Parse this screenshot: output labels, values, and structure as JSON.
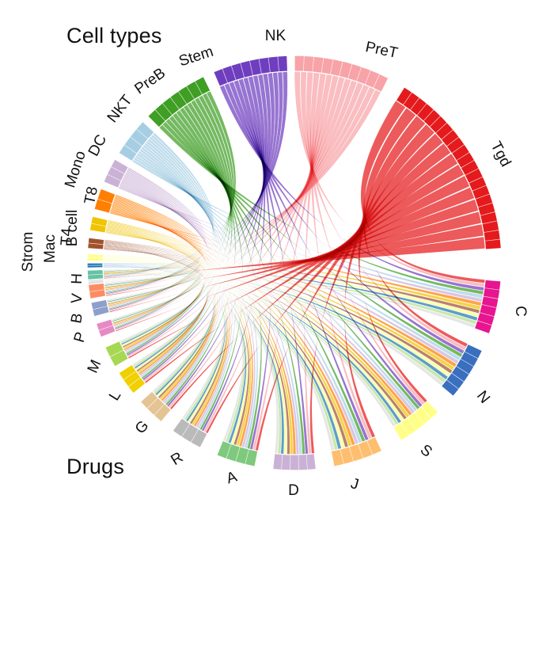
{
  "headings": {
    "cell_types": "Cell types",
    "drugs": "Drugs"
  },
  "cell_types": [
    {
      "id": "Tgd",
      "label": "Tgd",
      "color": "#e41a1c",
      "rank": 1
    },
    {
      "id": "PreT",
      "label": "PreT",
      "color": "#f8a3a7",
      "rank": 2
    },
    {
      "id": "NK",
      "label": "NK",
      "color": "#6f3ebf",
      "rank": 3
    },
    {
      "id": "Stem",
      "label": "Stem",
      "color": "#3f9e24",
      "rank": 4
    },
    {
      "id": "PreB",
      "label": "PreB",
      "color": "#a6cee3",
      "rank": 5
    },
    {
      "id": "NKT",
      "label": "NKT",
      "color": "#cab2d6",
      "rank": 6
    },
    {
      "id": "DC",
      "label": "DC",
      "color": "#ff7f00",
      "rank": 7
    },
    {
      "id": "Mono",
      "label": "Mono",
      "color": "#f0c400",
      "rank": 8
    },
    {
      "id": "T8",
      "label": "T8",
      "color": "#a0522d",
      "rank": 9
    },
    {
      "id": "T4",
      "label": "T4",
      "color": "#ffff88",
      "rank": 10
    },
    {
      "id": "Bcell",
      "label": "B cell",
      "color": "#1f78b4",
      "rank": 11
    },
    {
      "id": "Mac",
      "label": "Mac",
      "color": "#b2df8a",
      "rank": 12
    },
    {
      "id": "Strom",
      "label": "Strom",
      "color": "#dddddd",
      "rank": 13
    }
  ],
  "drugs": [
    {
      "id": "C",
      "label": "C",
      "color": "#e7158f"
    },
    {
      "id": "N",
      "label": "N",
      "color": "#3a6fbf"
    },
    {
      "id": "S",
      "label": "S",
      "color": "#ffff88"
    },
    {
      "id": "J",
      "label": "J",
      "color": "#fdbf6f"
    },
    {
      "id": "D",
      "label": "D",
      "color": "#cab2d6"
    },
    {
      "id": "A",
      "label": "A",
      "color": "#7fc97f"
    },
    {
      "id": "R",
      "label": "R",
      "color": "#bababa"
    },
    {
      "id": "G",
      "label": "G",
      "color": "#e5c494"
    },
    {
      "id": "L",
      "label": "L",
      "color": "#f0d000"
    },
    {
      "id": "M",
      "label": "M",
      "color": "#a6d854"
    },
    {
      "id": "P",
      "label": "P",
      "color": "#e78ac3"
    },
    {
      "id": "B",
      "label": "B",
      "color": "#8da0cb"
    },
    {
      "id": "V",
      "label": "V",
      "color": "#fc8d62"
    },
    {
      "id": "H",
      "label": "H",
      "color": "#66c2a5"
    }
  ]
}
